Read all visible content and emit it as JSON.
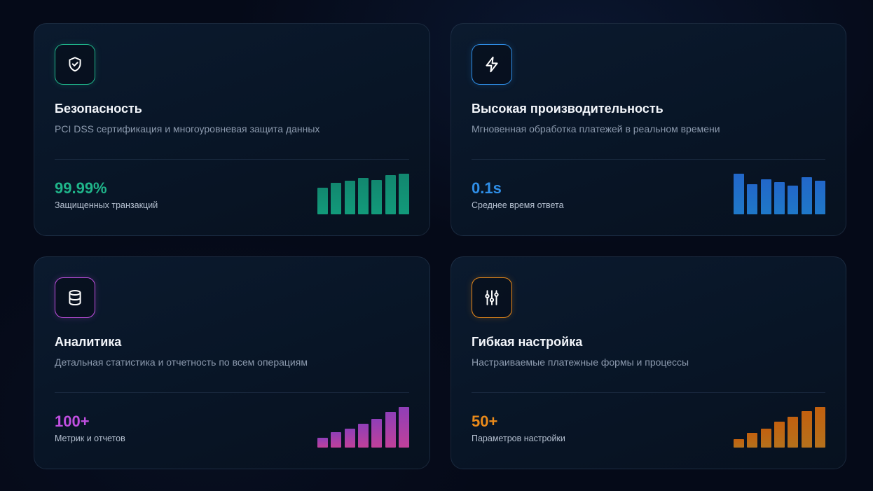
{
  "cards": [
    {
      "icon": "shield-check-icon",
      "accent": "#1fb58a",
      "title": "Безопасность",
      "description": "PCI DSS сертификация и многоуровневая защита данных",
      "stat_value": "99.99%",
      "stat_label": "Защищенных транзакций",
      "bar_levels": [
        0.65,
        0.77,
        0.82,
        0.9,
        0.85,
        0.97,
        1.0
      ],
      "bar_colors": [
        "#12876f",
        "#129a7a"
      ]
    },
    {
      "icon": "lightning-icon",
      "accent": "#2f8fe8",
      "title": "Высокая производительность",
      "description": "Мгновенная обработка платежей в реальном времени",
      "stat_value": "0.1s",
      "stat_label": "Среднее время ответа",
      "bar_levels": [
        1.0,
        0.74,
        0.86,
        0.79,
        0.71,
        0.91,
        0.83
      ],
      "bar_colors": [
        "#2267c9",
        "#1f78c8"
      ]
    },
    {
      "icon": "database-icon",
      "accent": "#c04fe0",
      "title": "Аналитика",
      "description": "Детальная статистика и отчетность по всем операциям",
      "stat_value": "100+",
      "stat_label": "Метрик и отчетов",
      "bar_levels": [
        0.24,
        0.38,
        0.47,
        0.59,
        0.7,
        0.88,
        1.0
      ],
      "bar_colors": [
        "#8f3fb8",
        "#c0409a"
      ]
    },
    {
      "icon": "sliders-icon",
      "accent": "#ea8a1a",
      "title": "Гибкая настройка",
      "description": "Настраиваемые платежные формы и процессы",
      "stat_value": "50+",
      "stat_label": "Параметров настройки",
      "bar_levels": [
        0.2,
        0.36,
        0.47,
        0.63,
        0.75,
        0.9,
        1.0
      ],
      "bar_colors": [
        "#c2600f",
        "#b5711c"
      ]
    }
  ]
}
